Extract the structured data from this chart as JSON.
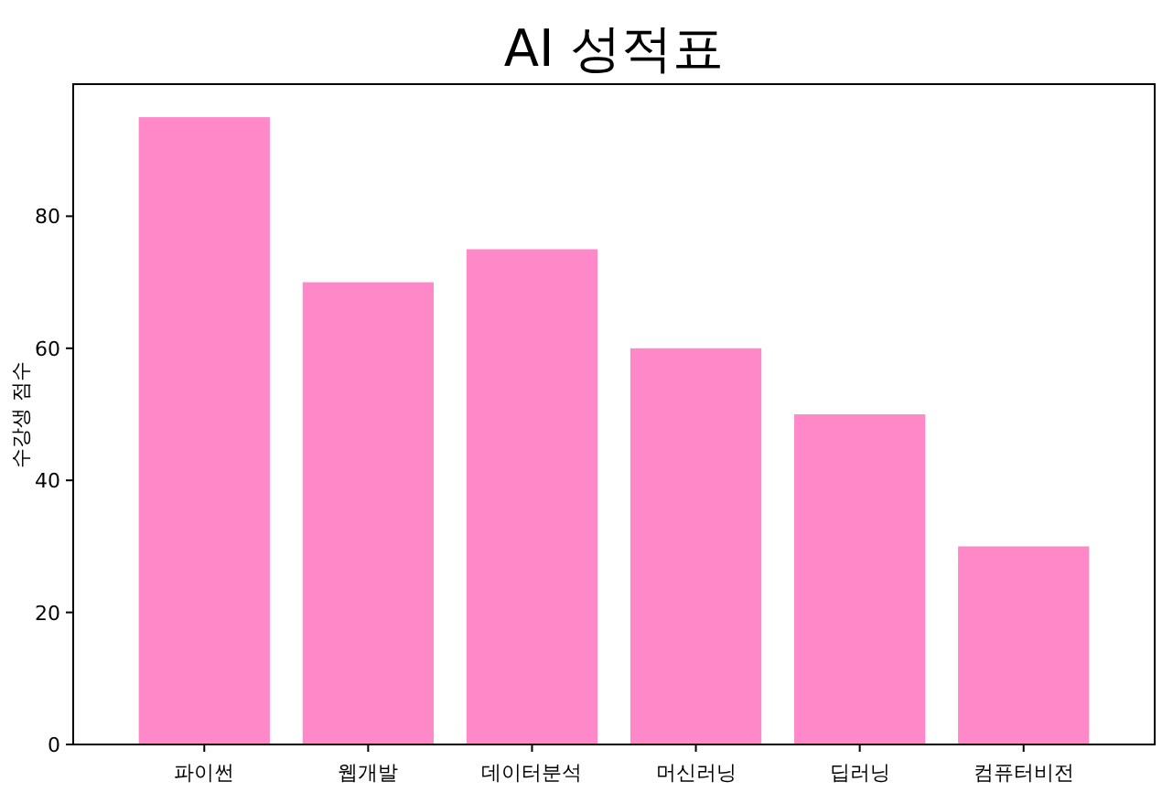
{
  "chart_data": {
    "type": "bar",
    "title": "AI 성적표",
    "ylabel": "수강생 점수",
    "categories": [
      "파이썬",
      "웹개발",
      "데이터분석",
      "머신러닝",
      "딥러닝",
      "컴퓨터비전"
    ],
    "values": [
      95,
      70,
      75,
      60,
      50,
      30
    ],
    "color": "#ff88c8",
    "ylim": [
      0,
      100
    ],
    "yticks": [
      0,
      20,
      40,
      60,
      80
    ]
  }
}
